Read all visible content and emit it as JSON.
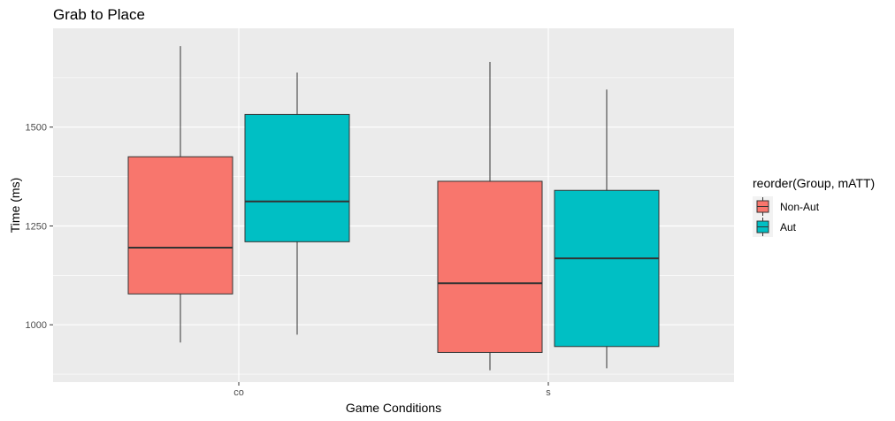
{
  "chart_data": {
    "type": "boxplot",
    "title": "Grab to Place",
    "xlabel": "Game Conditions",
    "ylabel": "Time (ms)",
    "categories": [
      "co",
      "s"
    ],
    "y_ticks": [
      1000,
      1250,
      1500
    ],
    "y_tick_labels": [
      "1000",
      "1250",
      "1500"
    ],
    "ylim": [
      855,
      1750
    ],
    "grid": true,
    "legend": {
      "title": "reorder(Group, mATT)",
      "position": "right",
      "entries": [
        "Non-Aut",
        "Aut"
      ]
    },
    "series": [
      {
        "name": "Non-Aut",
        "color": "#F8766D",
        "boxes": [
          {
            "category": "co",
            "min": 955,
            "q1": 1078,
            "median": 1195,
            "q3": 1425,
            "max": 1705
          },
          {
            "category": "s",
            "min": 885,
            "q1": 930,
            "median": 1105,
            "q3": 1363,
            "max": 1665
          }
        ]
      },
      {
        "name": "Aut",
        "color": "#00BFC4",
        "boxes": [
          {
            "category": "co",
            "min": 975,
            "q1": 1210,
            "median": 1312,
            "q3": 1532,
            "max": 1638
          },
          {
            "category": "s",
            "min": 890,
            "q1": 945,
            "median": 1168,
            "q3": 1340,
            "max": 1595
          }
        ]
      }
    ]
  }
}
